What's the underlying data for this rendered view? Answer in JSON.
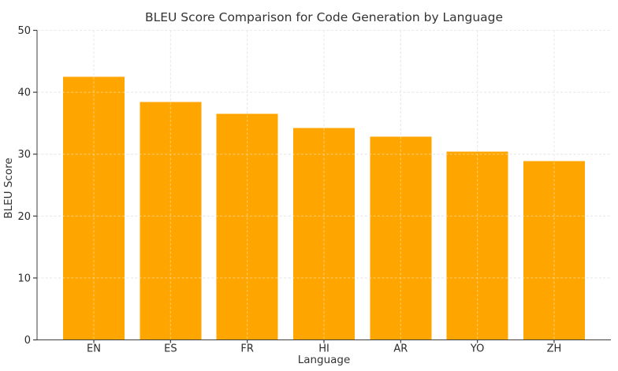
{
  "chart_data": {
    "type": "bar",
    "title": "BLEU Score Comparison for Code Generation by Language",
    "xlabel": "Language",
    "ylabel": "BLEU Score",
    "categories": [
      "EN",
      "ES",
      "FR",
      "HI",
      "AR",
      "YO",
      "ZH"
    ],
    "values": [
      42.5,
      38.4,
      36.5,
      34.2,
      32.8,
      30.4,
      28.9
    ],
    "ylim": [
      0,
      50
    ],
    "yticks": [
      0,
      10,
      20,
      30,
      40,
      50
    ],
    "grid": true,
    "grid_style": "dashed",
    "grid_on_top_of_bars": true,
    "legend_position": "none",
    "bar_color": "#FFA500",
    "grid_color": "#d8d8d8",
    "axis_color": "#3f3f3f",
    "text_color": "#333333",
    "background_color": "#ffffff"
  }
}
